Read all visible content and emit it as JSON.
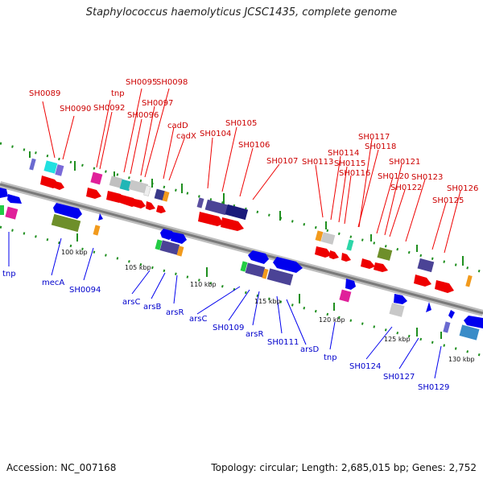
{
  "title": "Staphylococcus haemolyticus JCSC1435, complete genome",
  "footer": {
    "accession": "Accession: NC_007168",
    "stats": "Topology: circular; Length: 2,685,015 bp; Genes: 2,752"
  },
  "colors": {
    "backbone": "#909090",
    "forward_gene": "#ee0000",
    "reverse_gene": "#0000ee",
    "label_forward": "#cc0000",
    "label_reverse": "#0000cc",
    "cds_blue": "#1a1aff",
    "orf_purple": "#5a4fa0",
    "olive": "#6e8f2a",
    "cyan": "#20e0e0",
    "magenta": "#e0209a",
    "orange": "#f29a1c",
    "green": "#22cc44",
    "gray": "#c0c0c0",
    "navy": "#1a1a7a",
    "teal": "#3a8cc8",
    "mint": "#2cd6a8",
    "dot_green": "#1f8f1f"
  },
  "tick_labels": [
    "100 kbp",
    "105 kbp",
    "110 kbp",
    "115 kbp",
    "120 kbp",
    "125 kbp",
    "130 kbp"
  ],
  "forward_labels": [
    "SH0089",
    "SH0090",
    "tnp",
    "SH0092",
    "SH0095",
    "SH0098",
    "SH0096",
    "SH0097",
    "cadD",
    "cadX",
    "SH0104",
    "SH0105",
    "SH0106",
    "SH0107",
    "SH0113",
    "SH0114",
    "SH0115",
    "SH0116",
    "SH0117",
    "SH0118",
    "SH0120",
    "SH0121",
    "SH0122",
    "SH0123",
    "SH0125",
    "SH0126"
  ],
  "reverse_labels": [
    "tnp",
    "mecA",
    "SH0094",
    "arsC",
    "arsB",
    "arsR",
    "arsC",
    "SH0109",
    "arsR",
    "SH0111",
    "arsD",
    "tnp",
    "SH0124",
    "SH0127",
    "SH0129"
  ]
}
